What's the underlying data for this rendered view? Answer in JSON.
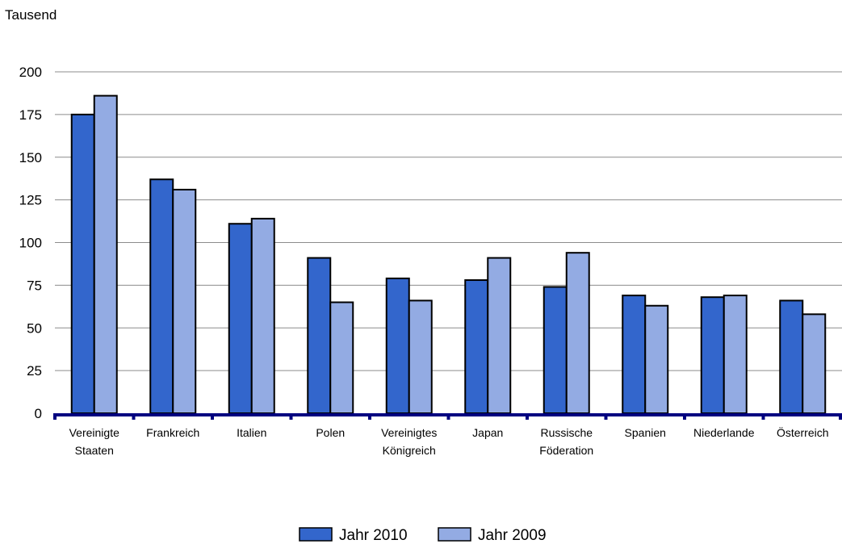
{
  "chart_data": {
    "type": "bar",
    "ylabel": "Tausend",
    "ylim": [
      0,
      200
    ],
    "yticks": [
      "0",
      "25",
      "50",
      "75",
      "100",
      "125",
      "150",
      "175",
      "200"
    ],
    "grid": true,
    "legend_position": "bottom",
    "categories": [
      [
        "Vereinigte",
        "Staaten"
      ],
      [
        "Frankreich"
      ],
      [
        "Italien"
      ],
      [
        "Polen"
      ],
      [
        "Vereinigtes",
        "Königreich"
      ],
      [
        "Japan"
      ],
      [
        "Russische",
        "Föderation"
      ],
      [
        "Spanien"
      ],
      [
        "Niederlande"
      ],
      [
        "Österreich"
      ]
    ],
    "series": [
      {
        "name": "Jahr 2010",
        "color": "#3366CC",
        "values": [
          175,
          137,
          111,
          91,
          79,
          78,
          74,
          69,
          68,
          66
        ]
      },
      {
        "name": "Jahr 2009",
        "color": "#93ABE3",
        "values": [
          186,
          131,
          114,
          65,
          66,
          91,
          94,
          63,
          69,
          58
        ]
      }
    ],
    "axis_color": "#000080"
  }
}
